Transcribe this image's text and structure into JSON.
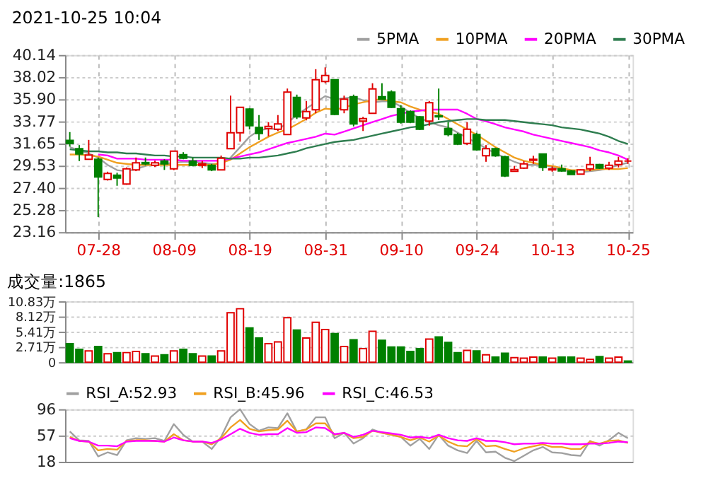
{
  "chart_data": [
    {
      "type": "candlestick",
      "title": "2021-10-25 10:04",
      "categories": [
        null,
        null,
        null,
        "07-28",
        null,
        null,
        null,
        null,
        null,
        null,
        null,
        "08-09",
        null,
        null,
        null,
        null,
        null,
        null,
        null,
        "08-19",
        null,
        null,
        null,
        null,
        null,
        null,
        null,
        "08-31",
        null,
        null,
        null,
        null,
        null,
        null,
        null,
        "09-10",
        null,
        null,
        null,
        null,
        null,
        null,
        null,
        "09-24",
        null,
        null,
        null,
        null,
        null,
        null,
        null,
        "10-13",
        null,
        null,
        null,
        null,
        null,
        null,
        null,
        "10-25"
      ],
      "ohlc": [
        [
          31.95,
          32.75,
          31.35,
          31.65
        ],
        [
          31.16,
          31.5,
          29.97,
          30.65
        ],
        [
          30.14,
          32.0,
          30.1,
          30.55
        ],
        [
          30.14,
          30.31,
          24.6,
          28.44
        ],
        [
          28.21,
          28.95,
          28.1,
          28.78
        ],
        [
          28.61,
          28.85,
          27.6,
          28.34
        ],
        [
          27.77,
          29.36,
          27.7,
          29.22
        ],
        [
          29.12,
          30.31,
          29.0,
          29.8
        ],
        [
          29.83,
          30.31,
          29.56,
          29.7
        ],
        [
          29.56,
          30.0,
          29.4,
          29.8
        ],
        [
          29.97,
          30.14,
          29.12,
          29.7
        ],
        [
          29.22,
          30.92,
          29.1,
          30.92
        ],
        [
          30.58,
          30.82,
          30.14,
          30.24
        ],
        [
          29.97,
          30.31,
          29.46,
          29.56
        ],
        [
          29.56,
          30.0,
          29.3,
          29.7
        ],
        [
          29.56,
          29.7,
          29.0,
          29.12
        ],
        [
          29.12,
          30.5,
          29.1,
          30.24
        ],
        [
          31.16,
          36.24,
          31.16,
          32.68
        ],
        [
          32.68,
          35.12,
          31.83,
          35.12
        ],
        [
          34.95,
          35.05,
          33.0,
          33.36
        ],
        [
          33.19,
          34.38,
          32.0,
          32.61
        ],
        [
          33.09,
          33.7,
          32.34,
          33.29
        ],
        [
          33.02,
          34.38,
          32.85,
          33.53
        ],
        [
          32.51,
          36.92,
          32.51,
          36.58
        ],
        [
          36.07,
          36.34,
          34.0,
          34.21
        ],
        [
          34.11,
          35.73,
          33.87,
          34.72
        ],
        [
          34.89,
          38.78,
          34.55,
          37.77
        ],
        [
          37.6,
          38.95,
          37.43,
          38.17
        ],
        [
          37.77,
          37.77,
          34.38,
          34.45
        ],
        [
          34.89,
          36.24,
          34.55,
          35.9
        ],
        [
          36.14,
          36.34,
          33.29,
          33.53
        ],
        [
          33.8,
          34.21,
          32.85,
          34.04
        ],
        [
          34.55,
          37.43,
          34.55,
          36.89
        ],
        [
          36.14,
          37.43,
          35.9,
          35.9
        ],
        [
          36.58,
          36.75,
          35.05,
          35.12
        ],
        [
          34.99,
          35.33,
          33.56,
          33.7
        ],
        [
          34.72,
          34.82,
          33.6,
          33.7
        ],
        [
          34.21,
          34.28,
          32.95,
          33.02
        ],
        [
          33.8,
          35.73,
          33.36,
          35.56
        ],
        [
          34.31,
          36.92,
          33.9,
          34.21
        ],
        [
          33.09,
          33.7,
          32.34,
          32.51
        ],
        [
          32.51,
          32.68,
          31.5,
          31.6
        ],
        [
          31.67,
          33.7,
          31.5,
          33.02
        ],
        [
          32.51,
          32.68,
          30.99,
          31.06
        ],
        [
          30.48,
          31.5,
          29.9,
          31.16
        ],
        [
          31.16,
          31.26,
          30.38,
          30.48
        ],
        [
          30.38,
          30.48,
          28.44,
          28.55
        ],
        [
          28.99,
          29.5,
          28.95,
          29.16
        ],
        [
          29.29,
          29.97,
          29.22,
          29.7
        ],
        [
          30.04,
          30.48,
          29.7,
          30.14
        ],
        [
          30.65,
          30.65,
          29.02,
          29.36
        ],
        [
          29.12,
          29.46,
          28.95,
          29.22
        ],
        [
          29.22,
          29.63,
          28.95,
          29.02
        ],
        [
          29.02,
          29.12,
          28.68,
          28.68
        ],
        [
          28.72,
          29.19,
          28.68,
          29.12
        ],
        [
          29.22,
          30.38,
          29.0,
          29.63
        ],
        [
          29.63,
          29.7,
          29.22,
          29.29
        ],
        [
          29.29,
          29.9,
          29.12,
          29.56
        ],
        [
          29.63,
          30.38,
          29.36,
          29.97
        ],
        [
          29.97,
          30.24,
          29.7,
          29.97
        ]
      ],
      "series": [
        {
          "name": "5PMA",
          "type": "line",
          "color": "#a0a0a0",
          "values": [
            31.3,
            31.0,
            30.7,
            30.3,
            29.6,
            29.1,
            29.0,
            29.2,
            29.5,
            29.7,
            29.7,
            29.8,
            29.9,
            29.9,
            29.8,
            29.7,
            29.7,
            30.3,
            31.3,
            32.3,
            32.9,
            33.1,
            33.0,
            33.6,
            34.4,
            35.0,
            35.6,
            36.2,
            35.9,
            36.0,
            36.1,
            35.8,
            35.6,
            35.7,
            35.7,
            35.2,
            34.6,
            34.1,
            33.7,
            33.4,
            33.2,
            32.7,
            32.2,
            31.7,
            31.2,
            30.7,
            30.3,
            29.9,
            29.6,
            29.6,
            29.6,
            29.4,
            29.1,
            29.0,
            28.9,
            29.0,
            29.1,
            29.3,
            29.6,
            29.8
          ]
        },
        {
          "name": "10PMA",
          "type": "line",
          "color": "#f0a020",
          "values": [
            30.6,
            30.6,
            30.5,
            30.4,
            30.1,
            29.8,
            29.7,
            29.6,
            29.6,
            29.6,
            29.6,
            29.6,
            29.6,
            29.6,
            29.6,
            29.6,
            29.8,
            30.1,
            30.7,
            31.3,
            31.8,
            32.3,
            32.7,
            33.0,
            33.5,
            34.0,
            34.6,
            35.0,
            34.9,
            35.1,
            35.4,
            35.6,
            35.8,
            35.9,
            35.7,
            35.6,
            35.2,
            34.9,
            34.7,
            34.5,
            34.0,
            33.5,
            33.0,
            32.5,
            31.9,
            31.3,
            30.8,
            30.3,
            30.0,
            29.8,
            29.6,
            29.5,
            29.3,
            29.1,
            29.1,
            29.1,
            29.2,
            29.2,
            29.2,
            29.3
          ]
        },
        {
          "name": "20PMA",
          "type": "line",
          "color": "#ff00ff",
          "values": [
            null,
            null,
            null,
            30.6,
            30.5,
            30.2,
            30.2,
            30.2,
            30.1,
            30.1,
            30.1,
            30.1,
            30.0,
            30.0,
            30.0,
            30.0,
            30.0,
            30.2,
            30.4,
            30.6,
            30.8,
            31.1,
            31.4,
            31.7,
            31.9,
            32.1,
            32.3,
            32.6,
            32.5,
            32.8,
            33.1,
            33.4,
            33.7,
            34.0,
            34.3,
            34.5,
            34.7,
            34.8,
            34.9,
            34.9,
            34.9,
            34.9,
            34.5,
            34.0,
            33.8,
            33.5,
            33.2,
            33.0,
            32.8,
            32.5,
            32.3,
            32.1,
            31.9,
            31.7,
            31.5,
            31.3,
            31.0,
            30.8,
            30.5,
            30.1
          ]
        },
        {
          "name": "30PMA",
          "type": "line",
          "color": "#2e7d4f",
          "values": [
            31.1,
            31.0,
            30.9,
            30.9,
            30.8,
            30.8,
            30.7,
            30.7,
            30.6,
            30.5,
            30.5,
            30.4,
            30.4,
            30.3,
            30.3,
            30.3,
            30.3,
            30.2,
            30.2,
            30.3,
            30.3,
            30.4,
            30.5,
            30.7,
            30.9,
            31.2,
            31.4,
            31.6,
            31.8,
            31.9,
            32.0,
            32.2,
            32.4,
            32.6,
            32.8,
            33.0,
            33.2,
            33.3,
            33.5,
            33.7,
            33.8,
            33.9,
            34.0,
            34.0,
            33.9,
            33.9,
            33.9,
            33.8,
            33.7,
            33.6,
            33.5,
            33.4,
            33.2,
            33.1,
            33.0,
            32.8,
            32.6,
            32.3,
            31.9,
            31.6
          ]
        }
      ],
      "ylim": [
        23.16,
        40.14
      ],
      "yticks": [
        23.16,
        25.28,
        {
          "value": 27.4,
          "label": "27.40"
        },
        29.53,
        31.65,
        33.77,
        {
          "value": 35.9,
          "label": "35.90"
        },
        38.02,
        40.14
      ],
      "grid": true,
      "legend": "top right"
    },
    {
      "type": "bar",
      "title": "成交量:1865",
      "categories": [
        null,
        null,
        null,
        null,
        null,
        null,
        null,
        null,
        null,
        null,
        null,
        null,
        null,
        null,
        null,
        null,
        null,
        null,
        null,
        null,
        null,
        null,
        null,
        null,
        null,
        null,
        null,
        null,
        null,
        null,
        null,
        null,
        null,
        null,
        null,
        null,
        null,
        null,
        null,
        null,
        null,
        null,
        null,
        null,
        null,
        null,
        null,
        null,
        null,
        null,
        null,
        null,
        null,
        null,
        null,
        null,
        null,
        null,
        null,
        null
      ],
      "values": [
        3.3,
        2.3,
        2.0,
        2.8,
        1.5,
        1.7,
        1.7,
        1.9,
        1.5,
        1.1,
        1.3,
        2.0,
        2.3,
        1.5,
        1.1,
        1.1,
        2.0,
        8.8,
        9.5,
        6.1,
        4.3,
        3.3,
        3.6,
        7.9,
        5.7,
        4.3,
        7.1,
        5.8,
        5.1,
        2.8,
        4.0,
        2.4,
        5.5,
        3.9,
        2.7,
        2.7,
        1.9,
        2.4,
        4.1,
        4.5,
        3.5,
        1.7,
        2.1,
        2.0,
        1.3,
        0.9,
        1.6,
        0.8,
        0.7,
        0.9,
        0.9,
        0.7,
        0.9,
        0.9,
        0.7,
        0.5,
        1.0,
        0.7,
        0.9,
        0.2
      ],
      "colors": [
        "#008000",
        "#008000",
        "#e00000",
        "#008000",
        "#e00000",
        "#008000",
        "#e00000",
        "#e00000",
        "#008000",
        "#e00000",
        "#008000",
        "#e00000",
        "#008000",
        "#008000",
        "#e00000",
        "#008000",
        "#e00000",
        "#e00000",
        "#e00000",
        "#008000",
        "#008000",
        "#e00000",
        "#e00000",
        "#e00000",
        "#008000",
        "#e00000",
        "#e00000",
        "#e00000",
        "#008000",
        "#e00000",
        "#008000",
        "#e00000",
        "#e00000",
        "#008000",
        "#008000",
        "#008000",
        "#008000",
        "#008000",
        "#e00000",
        "#008000",
        "#008000",
        "#008000",
        "#e00000",
        "#008000",
        "#e00000",
        "#008000",
        "#008000",
        "#e00000",
        "#e00000",
        "#e00000",
        "#008000",
        "#e00000",
        "#008000",
        "#008000",
        "#e00000",
        "#e00000",
        "#008000",
        "#e00000",
        "#e00000",
        "#008000"
      ],
      "ylim": [
        0,
        10.83
      ],
      "yticks": [
        0,
        {
          "value": 2.71,
          "label": "2.71万"
        },
        {
          "value": 5.41,
          "label": "5.41万"
        },
        {
          "value": 8.12,
          "label": "8.12万"
        },
        {
          "value": 10.83,
          "label": "10.83万"
        }
      ],
      "grid": true,
      "tick_labels": "y"
    },
    {
      "type": "line",
      "categories": [
        null,
        null,
        null,
        null,
        null,
        null,
        null,
        null,
        null,
        null,
        null,
        null,
        null,
        null,
        null,
        null,
        null,
        null,
        null,
        null,
        null,
        null,
        null,
        null,
        null,
        null,
        null,
        null,
        null,
        null,
        null,
        null,
        null,
        null,
        null,
        null,
        null,
        null,
        null,
        null,
        null,
        null,
        null,
        null,
        null,
        null,
        null,
        null,
        null,
        null,
        null,
        null,
        null,
        null,
        null,
        null,
        null,
        null,
        null,
        null
      ],
      "series": [
        {
          "name": "RSI_A:52.93",
          "color": "#a0a0a0",
          "values": [
            63,
            50,
            49,
            26,
            32,
            28,
            50,
            53,
            52,
            53,
            49,
            74,
            58,
            48,
            48,
            37,
            55,
            84,
            96,
            74,
            64,
            69,
            68,
            90,
            63,
            66,
            84,
            84,
            53,
            61,
            45,
            53,
            66,
            61,
            58,
            55,
            42,
            52,
            37,
            58,
            42,
            35,
            31,
            49,
            32,
            33,
            24,
            19,
            27,
            35,
            40,
            32,
            31,
            28,
            27,
            49,
            42,
            50,
            61,
            53
          ]
        },
        {
          "name": "RSI_B:45.96",
          "color": "#f0a020",
          "values": [
            55,
            49,
            48,
            35,
            37,
            36,
            49,
            50,
            50,
            49,
            48,
            59,
            50,
            48,
            48,
            44,
            53,
            69,
            80,
            67,
            63,
            65,
            66,
            79,
            63,
            66,
            75,
            75,
            58,
            61,
            53,
            55,
            64,
            61,
            58,
            55,
            50,
            54,
            48,
            57,
            48,
            42,
            41,
            52,
            41,
            42,
            37,
            33,
            38,
            41,
            44,
            40,
            40,
            37,
            37,
            48,
            45,
            49,
            50,
            46
          ]
        },
        {
          "name": "RSI_C:46.53",
          "color": "#ff00ff",
          "values": [
            53,
            49,
            48,
            42,
            42,
            41,
            48,
            49,
            49,
            49,
            48,
            54,
            50,
            48,
            48,
            46,
            51,
            59,
            67,
            61,
            58,
            59,
            59,
            68,
            61,
            62,
            69,
            68,
            59,
            61,
            55,
            58,
            64,
            62,
            60,
            58,
            54,
            55,
            53,
            58,
            53,
            50,
            49,
            53,
            49,
            49,
            47,
            44,
            45,
            45,
            46,
            45,
            45,
            44,
            44,
            45,
            45,
            46,
            48,
            47
          ]
        }
      ],
      "ylim": [
        18,
        96
      ],
      "yticks": [
        18,
        57,
        96
      ],
      "grid": true,
      "legend": "top left",
      "tick_labels": "y"
    }
  ]
}
